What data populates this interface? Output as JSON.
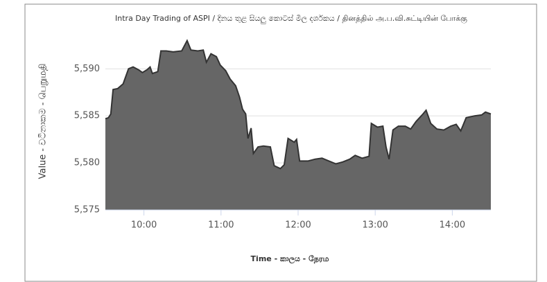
{
  "chart_data": {
    "type": "area",
    "title": "Intra Day Trading of ASPI / දිනය තුළ සියලු කොටස් මිල දර්ශකය / தினத்தில் அ.ப.வி.சுட்டியின் போக்கு",
    "x_label": "Time - කාලය - நேரம",
    "y_label": "Value - වටිනාකම - பெறுமதி",
    "x": [
      9.5,
      9.54,
      9.57,
      9.6,
      9.66,
      9.73,
      9.8,
      9.86,
      9.93,
      9.98,
      10.04,
      10.08,
      10.11,
      10.18,
      10.22,
      10.29,
      10.38,
      10.49,
      10.56,
      10.61,
      10.7,
      10.77,
      10.81,
      10.87,
      10.94,
      10.99,
      11.06,
      11.12,
      11.19,
      11.24,
      11.28,
      11.32,
      11.35,
      11.39,
      11.42,
      11.48,
      11.55,
      11.64,
      11.69,
      11.77,
      11.82,
      11.87,
      11.95,
      11.98,
      12.02,
      12.13,
      12.22,
      12.31,
      12.4,
      12.49,
      12.58,
      12.67,
      12.74,
      12.83,
      12.92,
      12.95,
      13.03,
      13.1,
      13.14,
      13.18,
      13.23,
      13.3,
      13.39,
      13.46,
      13.53,
      13.62,
      13.66,
      13.72,
      13.8,
      13.89,
      13.98,
      14.05,
      14.11,
      14.18,
      14.29,
      14.38,
      14.43,
      14.5
    ],
    "series": [
      {
        "color": "#666666",
        "line_color": "#333333",
        "values": [
          5584.7,
          5584.8,
          5585.2,
          5587.8,
          5587.9,
          5588.4,
          5590.0,
          5590.2,
          5589.9,
          5589.6,
          5589.9,
          5590.2,
          5589.5,
          5589.7,
          5591.9,
          5591.9,
          5591.8,
          5591.9,
          5593.0,
          5592.0,
          5591.9,
          5592.0,
          5590.7,
          5591.6,
          5591.3,
          5590.4,
          5589.8,
          5588.9,
          5588.2,
          5587.0,
          5585.7,
          5585.2,
          5582.6,
          5583.7,
          5581.0,
          5581.7,
          5581.8,
          5581.7,
          5579.7,
          5579.4,
          5579.8,
          5582.6,
          5582.2,
          5582.5,
          5580.2,
          5580.2,
          5580.4,
          5580.5,
          5580.2,
          5579.9,
          5580.1,
          5580.4,
          5580.8,
          5580.5,
          5580.7,
          5584.2,
          5583.8,
          5583.9,
          5581.7,
          5580.4,
          5583.5,
          5583.9,
          5583.9,
          5583.6,
          5584.4,
          5585.2,
          5585.6,
          5584.2,
          5583.6,
          5583.5,
          5583.9,
          5584.1,
          5583.4,
          5584.8,
          5585.0,
          5585.1,
          5585.4,
          5585.2
        ]
      }
    ],
    "xlim": [
      9.5,
      14.5
    ],
    "xticks": [
      {
        "value": 10,
        "label": "10:00"
      },
      {
        "value": 11,
        "label": "11:00"
      },
      {
        "value": 12,
        "label": "12:00"
      },
      {
        "value": 13,
        "label": "13:00"
      },
      {
        "value": 14,
        "label": "14:00"
      }
    ],
    "ylim": [
      5575,
      5594
    ],
    "yticks": [
      {
        "value": 5575,
        "label": "5,575"
      },
      {
        "value": 5580,
        "label": "5,580"
      },
      {
        "value": 5585,
        "label": "5,585"
      },
      {
        "value": 5590,
        "label": "5,590"
      }
    ],
    "grid": true
  }
}
